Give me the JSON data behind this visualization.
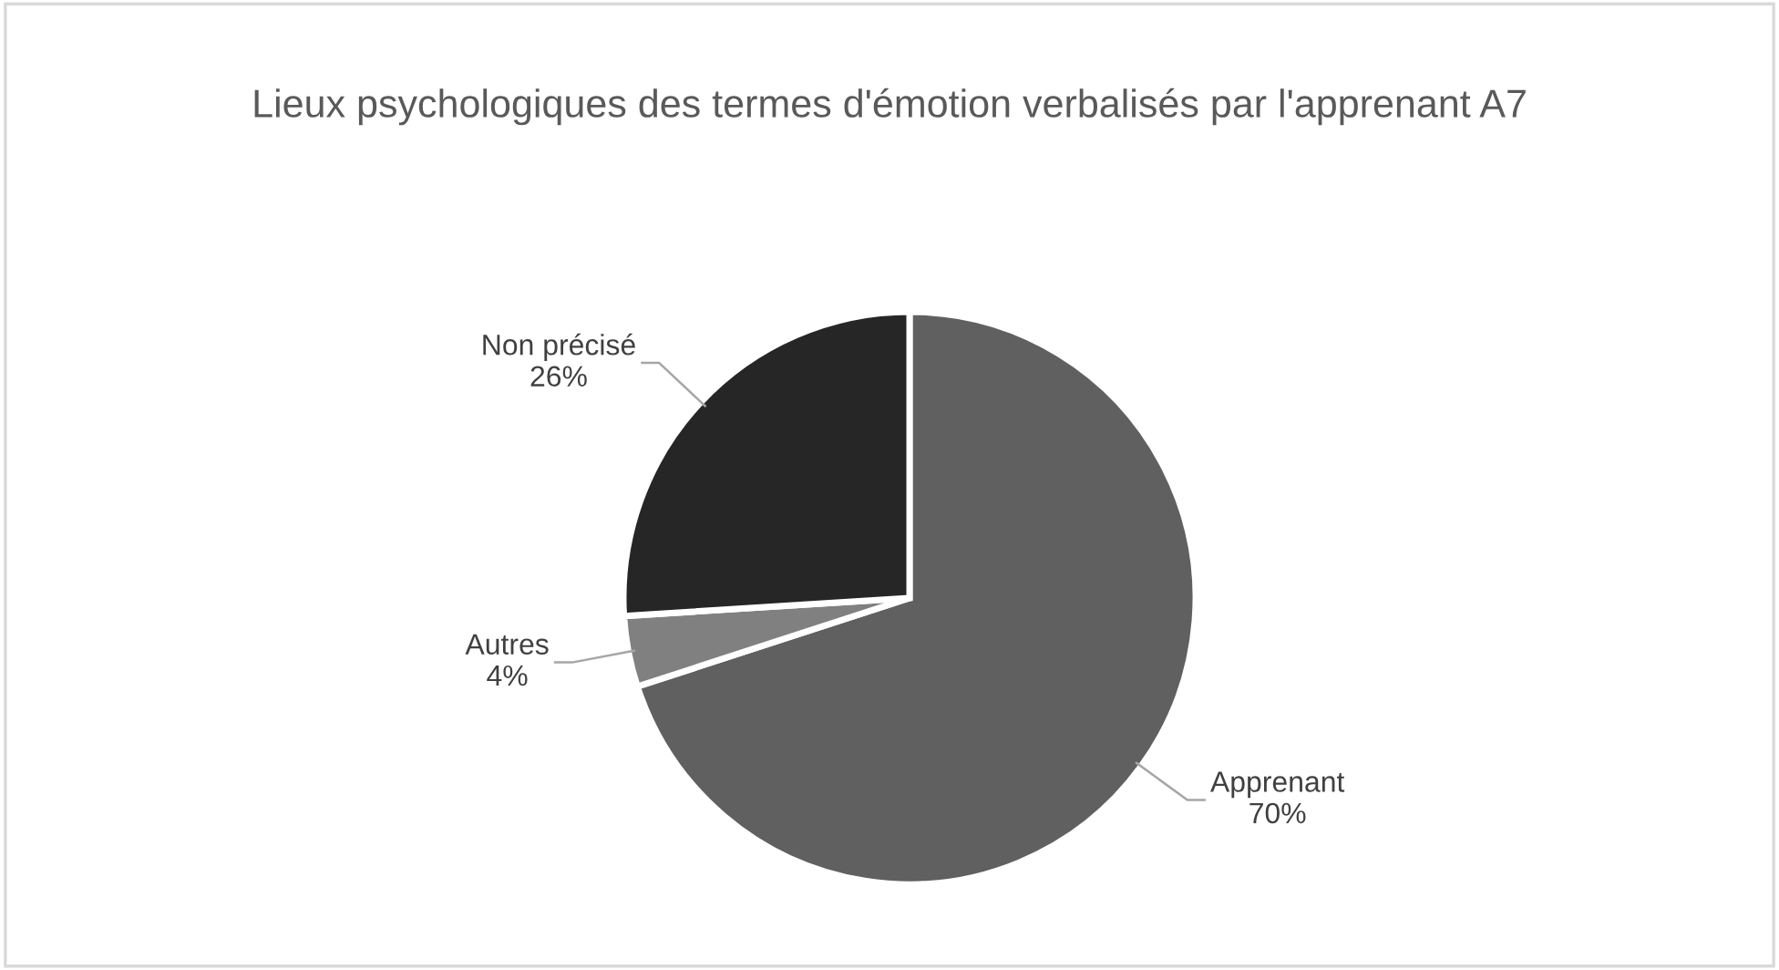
{
  "chart_data": {
    "type": "pie",
    "title": "Lieux psychologiques des termes d'émotion verbalisés par l'apprenant A7",
    "categories": [
      "Apprenant",
      "Autres",
      "Non précisé"
    ],
    "values": [
      70,
      4,
      26
    ],
    "value_labels": [
      "70%",
      "4%",
      "26%"
    ],
    "colors": [
      "#606060",
      "#808080",
      "#262626"
    ],
    "legend": false
  }
}
